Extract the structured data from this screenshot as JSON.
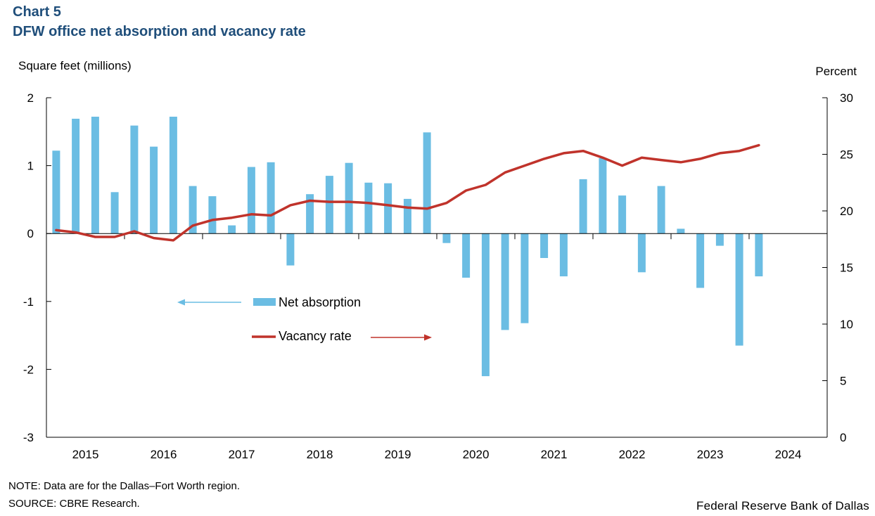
{
  "header": {
    "chart_number": "Chart 5",
    "title": "DFW office net absorption and vacancy rate"
  },
  "footer": {
    "note": "NOTE: Data are for the Dallas–Fort Worth region.",
    "source": "SOURCE: CBRE Research.",
    "credit": "Federal Reserve Bank of Dallas"
  },
  "colors": {
    "bar": "#6bbde3",
    "line": "#c0332b",
    "axis": "#000000"
  },
  "chart_data": {
    "type": "bar",
    "title": "DFW office net absorption and vacancy rate",
    "ylabel": "Square feet (millions)",
    "ylabel_right": "Percent",
    "ylim": [
      -3,
      2
    ],
    "ylim_right": [
      0,
      30
    ],
    "yticks": [
      "2",
      "1",
      "0",
      "-1",
      "-2",
      "-3"
    ],
    "yticks_right": [
      "30",
      "25",
      "20",
      "15",
      "10",
      "5",
      "0"
    ],
    "year_labels": [
      "2015",
      "2016",
      "2017",
      "2018",
      "2019",
      "2020",
      "2021",
      "2022",
      "2023",
      "2024"
    ],
    "quarters": [
      "2015Q1",
      "2015Q2",
      "2015Q3",
      "2015Q4",
      "2016Q1",
      "2016Q2",
      "2016Q3",
      "2016Q4",
      "2017Q1",
      "2017Q2",
      "2017Q3",
      "2017Q4",
      "2018Q1",
      "2018Q2",
      "2018Q3",
      "2018Q4",
      "2019Q1",
      "2019Q2",
      "2019Q3",
      "2019Q4",
      "2020Q1",
      "2020Q2",
      "2020Q3",
      "2020Q4",
      "2021Q1",
      "2021Q2",
      "2021Q3",
      "2021Q4",
      "2022Q1",
      "2022Q2",
      "2022Q3",
      "2022Q4",
      "2023Q1",
      "2023Q2",
      "2023Q3",
      "2023Q4",
      "2024Q1",
      "2024Q2",
      "2024Q3",
      "2024Q4"
    ],
    "series": [
      {
        "name": "Net absorption",
        "type": "bar",
        "axis": "left",
        "values": [
          1.22,
          1.69,
          1.72,
          0.61,
          1.59,
          1.28,
          1.72,
          0.7,
          0.55,
          0.12,
          0.98,
          1.05,
          -0.47,
          0.58,
          0.85,
          1.04,
          0.75,
          0.74,
          0.51,
          1.49,
          -0.14,
          -0.65,
          -2.1,
          -1.42,
          -1.32,
          -0.36,
          -0.63,
          0.8,
          1.11,
          0.56,
          -0.57,
          0.7,
          0.07,
          -0.8,
          -0.18,
          -1.65,
          -0.63,
          null,
          null,
          null
        ]
      },
      {
        "name": "Vacancy rate",
        "type": "line",
        "axis": "right",
        "values": [
          18.3,
          18.1,
          17.7,
          17.7,
          18.2,
          17.6,
          17.4,
          18.7,
          19.2,
          19.4,
          19.7,
          19.6,
          20.5,
          20.9,
          20.8,
          20.8,
          20.7,
          20.5,
          20.3,
          20.2,
          20.7,
          21.8,
          22.3,
          23.4,
          24.0,
          24.6,
          25.1,
          25.3,
          24.7,
          24.0,
          24.7,
          24.5,
          24.3,
          24.6,
          25.1,
          25.3,
          25.8,
          null,
          null,
          null
        ]
      }
    ],
    "legend": {
      "placement": "center-left",
      "arrow_left": "Net absorption",
      "arrow_right": "Vacancy rate"
    }
  }
}
